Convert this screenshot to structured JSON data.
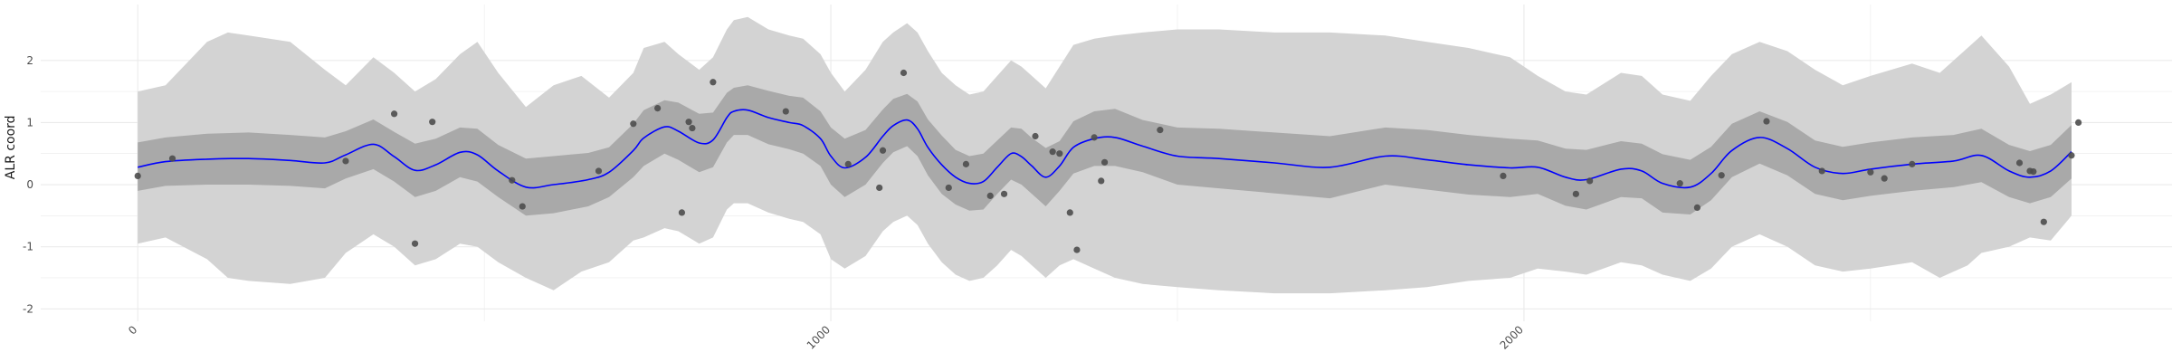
{
  "chart_data": {
    "type": "line",
    "title": "",
    "xlabel": "",
    "ylabel": "ALR coord",
    "xlim": [
      -140,
      2935
    ],
    "ylim": [
      -2.2,
      2.9
    ],
    "x_ticks": [
      0,
      1000,
      2000
    ],
    "x_tick_labels": [
      "0",
      "1000",
      "2000"
    ],
    "y_ticks": [
      -2,
      -1,
      0,
      1,
      2
    ],
    "y_tick_labels": [
      "-2",
      "-1",
      "0",
      "1",
      "2"
    ],
    "grid": true,
    "legend": "none",
    "colors": {
      "outer_band": "#d3d3d3",
      "inner_band": "#a9a9a9",
      "mean_line": "#0000ff",
      "points": "#4d4d4d",
      "grid": "#ebebeb"
    },
    "mean": [
      [
        0,
        0.28
      ],
      [
        40,
        0.37
      ],
      [
        100,
        0.41
      ],
      [
        160,
        0.42
      ],
      [
        220,
        0.39
      ],
      [
        270,
        0.35
      ],
      [
        300,
        0.48
      ],
      [
        340,
        0.65
      ],
      [
        370,
        0.45
      ],
      [
        400,
        0.23
      ],
      [
        430,
        0.32
      ],
      [
        465,
        0.52
      ],
      [
        490,
        0.48
      ],
      [
        520,
        0.22
      ],
      [
        560,
        -0.04
      ],
      [
        600,
        0.0
      ],
      [
        650,
        0.08
      ],
      [
        680,
        0.2
      ],
      [
        715,
        0.55
      ],
      [
        730,
        0.75
      ],
      [
        760,
        0.93
      ],
      [
        780,
        0.86
      ],
      [
        810,
        0.67
      ],
      [
        830,
        0.72
      ],
      [
        850,
        1.08
      ],
      [
        860,
        1.18
      ],
      [
        880,
        1.2
      ],
      [
        910,
        1.08
      ],
      [
        940,
        1.0
      ],
      [
        960,
        0.95
      ],
      [
        985,
        0.74
      ],
      [
        1000,
        0.46
      ],
      [
        1020,
        0.27
      ],
      [
        1050,
        0.44
      ],
      [
        1075,
        0.78
      ],
      [
        1090,
        0.95
      ],
      [
        1110,
        1.04
      ],
      [
        1125,
        0.9
      ],
      [
        1140,
        0.6
      ],
      [
        1160,
        0.32
      ],
      [
        1180,
        0.12
      ],
      [
        1200,
        0.02
      ],
      [
        1220,
        0.05
      ],
      [
        1240,
        0.28
      ],
      [
        1260,
        0.5
      ],
      [
        1275,
        0.45
      ],
      [
        1290,
        0.3
      ],
      [
        1310,
        0.12
      ],
      [
        1330,
        0.3
      ],
      [
        1350,
        0.6
      ],
      [
        1380,
        0.74
      ],
      [
        1410,
        0.76
      ],
      [
        1450,
        0.62
      ],
      [
        1500,
        0.46
      ],
      [
        1560,
        0.42
      ],
      [
        1640,
        0.35
      ],
      [
        1720,
        0.28
      ],
      [
        1800,
        0.46
      ],
      [
        1860,
        0.4
      ],
      [
        1920,
        0.32
      ],
      [
        1980,
        0.27
      ],
      [
        2020,
        0.28
      ],
      [
        2060,
        0.12
      ],
      [
        2090,
        0.08
      ],
      [
        2140,
        0.25
      ],
      [
        2170,
        0.22
      ],
      [
        2200,
        0.02
      ],
      [
        2240,
        -0.04
      ],
      [
        2270,
        0.18
      ],
      [
        2300,
        0.55
      ],
      [
        2340,
        0.76
      ],
      [
        2380,
        0.58
      ],
      [
        2420,
        0.28
      ],
      [
        2460,
        0.18
      ],
      [
        2500,
        0.25
      ],
      [
        2560,
        0.33
      ],
      [
        2620,
        0.38
      ],
      [
        2660,
        0.47
      ],
      [
        2700,
        0.22
      ],
      [
        2730,
        0.12
      ],
      [
        2760,
        0.22
      ],
      [
        2790,
        0.53
      ]
    ],
    "inner_band": [
      [
        0,
        -0.1,
        0.68
      ],
      [
        40,
        -0.02,
        0.76
      ],
      [
        100,
        0.0,
        0.82
      ],
      [
        160,
        0.0,
        0.84
      ],
      [
        220,
        -0.02,
        0.8
      ],
      [
        270,
        -0.06,
        0.76
      ],
      [
        300,
        0.1,
        0.86
      ],
      [
        340,
        0.25,
        1.05
      ],
      [
        370,
        0.05,
        0.85
      ],
      [
        400,
        -0.2,
        0.66
      ],
      [
        430,
        -0.1,
        0.74
      ],
      [
        465,
        0.12,
        0.92
      ],
      [
        490,
        0.05,
        0.9
      ],
      [
        520,
        -0.2,
        0.64
      ],
      [
        560,
        -0.5,
        0.42
      ],
      [
        600,
        -0.46,
        0.46
      ],
      [
        650,
        -0.35,
        0.51
      ],
      [
        680,
        -0.2,
        0.6
      ],
      [
        715,
        0.12,
        0.98
      ],
      [
        730,
        0.3,
        1.2
      ],
      [
        760,
        0.5,
        1.36
      ],
      [
        780,
        0.4,
        1.32
      ],
      [
        810,
        0.2,
        1.14
      ],
      [
        830,
        0.28,
        1.16
      ],
      [
        850,
        0.68,
        1.48
      ],
      [
        860,
        0.8,
        1.56
      ],
      [
        880,
        0.8,
        1.6
      ],
      [
        910,
        0.65,
        1.51
      ],
      [
        940,
        0.57,
        1.43
      ],
      [
        960,
        0.5,
        1.4
      ],
      [
        985,
        0.3,
        1.18
      ],
      [
        1000,
        0.0,
        0.92
      ],
      [
        1020,
        -0.2,
        0.74
      ],
      [
        1050,
        0.0,
        0.88
      ],
      [
        1075,
        0.35,
        1.21
      ],
      [
        1090,
        0.52,
        1.38
      ],
      [
        1110,
        0.62,
        1.46
      ],
      [
        1125,
        0.46,
        1.34
      ],
      [
        1140,
        0.15,
        1.05
      ],
      [
        1160,
        -0.15,
        0.79
      ],
      [
        1180,
        -0.32,
        0.56
      ],
      [
        1200,
        -0.42,
        0.46
      ],
      [
        1220,
        -0.4,
        0.5
      ],
      [
        1240,
        -0.15,
        0.71
      ],
      [
        1260,
        0.08,
        0.92
      ],
      [
        1275,
        0.0,
        0.9
      ],
      [
        1290,
        -0.15,
        0.75
      ],
      [
        1310,
        -0.35,
        0.59
      ],
      [
        1330,
        -0.1,
        0.7
      ],
      [
        1350,
        0.18,
        1.02
      ],
      [
        1380,
        0.3,
        1.18
      ],
      [
        1410,
        0.3,
        1.22
      ],
      [
        1450,
        0.2,
        1.04
      ],
      [
        1500,
        0.0,
        0.92
      ],
      [
        1560,
        -0.06,
        0.9
      ],
      [
        1640,
        -0.14,
        0.84
      ],
      [
        1720,
        -0.22,
        0.78
      ],
      [
        1800,
        0.0,
        0.92
      ],
      [
        1860,
        -0.08,
        0.88
      ],
      [
        1920,
        -0.16,
        0.8
      ],
      [
        1980,
        -0.2,
        0.74
      ],
      [
        2020,
        -0.15,
        0.71
      ],
      [
        2060,
        -0.34,
        0.58
      ],
      [
        2090,
        -0.4,
        0.56
      ],
      [
        2140,
        -0.2,
        0.7
      ],
      [
        2170,
        -0.22,
        0.66
      ],
      [
        2200,
        -0.45,
        0.49
      ],
      [
        2240,
        -0.48,
        0.4
      ],
      [
        2270,
        -0.25,
        0.61
      ],
      [
        2300,
        0.12,
        0.98
      ],
      [
        2340,
        0.34,
        1.18
      ],
      [
        2380,
        0.15,
        1.01
      ],
      [
        2420,
        -0.15,
        0.71
      ],
      [
        2460,
        -0.25,
        0.61
      ],
      [
        2500,
        -0.18,
        0.68
      ],
      [
        2560,
        -0.1,
        0.76
      ],
      [
        2620,
        -0.04,
        0.8
      ],
      [
        2660,
        0.04,
        0.9
      ],
      [
        2700,
        -0.2,
        0.64
      ],
      [
        2730,
        -0.3,
        0.54
      ],
      [
        2760,
        -0.2,
        0.64
      ],
      [
        2790,
        0.1,
        0.96
      ]
    ],
    "outer_band": [
      [
        0,
        -0.95,
        1.5
      ],
      [
        40,
        -0.85,
        1.6
      ],
      [
        100,
        -1.2,
        2.3
      ],
      [
        130,
        -1.5,
        2.45
      ],
      [
        160,
        -1.55,
        2.4
      ],
      [
        220,
        -1.6,
        2.3
      ],
      [
        270,
        -1.5,
        1.85
      ],
      [
        300,
        -1.1,
        1.6
      ],
      [
        340,
        -0.8,
        2.05
      ],
      [
        370,
        -1.0,
        1.8
      ],
      [
        400,
        -1.3,
        1.5
      ],
      [
        430,
        -1.2,
        1.7
      ],
      [
        465,
        -0.95,
        2.1
      ],
      [
        490,
        -1.0,
        2.3
      ],
      [
        520,
        -1.25,
        1.8
      ],
      [
        560,
        -1.5,
        1.25
      ],
      [
        600,
        -1.7,
        1.6
      ],
      [
        640,
        -1.4,
        1.75
      ],
      [
        680,
        -1.25,
        1.4
      ],
      [
        715,
        -0.9,
        1.8
      ],
      [
        730,
        -0.85,
        2.2
      ],
      [
        760,
        -0.7,
        2.3
      ],
      [
        780,
        -0.75,
        2.1
      ],
      [
        810,
        -0.95,
        1.85
      ],
      [
        830,
        -0.85,
        2.05
      ],
      [
        850,
        -0.4,
        2.5
      ],
      [
        860,
        -0.3,
        2.65
      ],
      [
        880,
        -0.3,
        2.7
      ],
      [
        910,
        -0.45,
        2.5
      ],
      [
        940,
        -0.55,
        2.4
      ],
      [
        960,
        -0.6,
        2.35
      ],
      [
        985,
        -0.8,
        2.1
      ],
      [
        1000,
        -1.2,
        1.8
      ],
      [
        1020,
        -1.35,
        1.5
      ],
      [
        1050,
        -1.15,
        1.85
      ],
      [
        1075,
        -0.75,
        2.3
      ],
      [
        1090,
        -0.6,
        2.45
      ],
      [
        1110,
        -0.5,
        2.6
      ],
      [
        1125,
        -0.65,
        2.45
      ],
      [
        1140,
        -0.95,
        2.15
      ],
      [
        1160,
        -1.25,
        1.8
      ],
      [
        1180,
        -1.45,
        1.6
      ],
      [
        1200,
        -1.55,
        1.45
      ],
      [
        1220,
        -1.5,
        1.5
      ],
      [
        1240,
        -1.3,
        1.75
      ],
      [
        1260,
        -1.05,
        2.0
      ],
      [
        1275,
        -1.15,
        1.9
      ],
      [
        1290,
        -1.3,
        1.75
      ],
      [
        1310,
        -1.5,
        1.55
      ],
      [
        1330,
        -1.3,
        1.9
      ],
      [
        1350,
        -1.2,
        2.25
      ],
      [
        1380,
        -1.35,
        2.35
      ],
      [
        1410,
        -1.5,
        2.4
      ],
      [
        1450,
        -1.6,
        2.45
      ],
      [
        1500,
        -1.65,
        2.5
      ],
      [
        1560,
        -1.7,
        2.5
      ],
      [
        1640,
        -1.75,
        2.45
      ],
      [
        1720,
        -1.75,
        2.45
      ],
      [
        1800,
        -1.7,
        2.4
      ],
      [
        1860,
        -1.65,
        2.3
      ],
      [
        1920,
        -1.55,
        2.2
      ],
      [
        1980,
        -1.5,
        2.05
      ],
      [
        2020,
        -1.35,
        1.75
      ],
      [
        2060,
        -1.4,
        1.5
      ],
      [
        2090,
        -1.45,
        1.45
      ],
      [
        2140,
        -1.25,
        1.8
      ],
      [
        2170,
        -1.3,
        1.75
      ],
      [
        2200,
        -1.45,
        1.45
      ],
      [
        2240,
        -1.55,
        1.35
      ],
      [
        2270,
        -1.35,
        1.75
      ],
      [
        2300,
        -1.0,
        2.1
      ],
      [
        2340,
        -0.8,
        2.3
      ],
      [
        2380,
        -1.0,
        2.15
      ],
      [
        2420,
        -1.3,
        1.85
      ],
      [
        2460,
        -1.4,
        1.6
      ],
      [
        2500,
        -1.35,
        1.75
      ],
      [
        2560,
        -1.25,
        1.95
      ],
      [
        2600,
        -1.5,
        1.8
      ],
      [
        2640,
        -1.3,
        2.2
      ],
      [
        2660,
        -1.1,
        2.4
      ],
      [
        2700,
        -1.0,
        1.9
      ],
      [
        2730,
        -0.85,
        1.3
      ],
      [
        2760,
        -0.9,
        1.45
      ],
      [
        2790,
        -0.5,
        1.65
      ]
    ],
    "points": [
      [
        0,
        0.14
      ],
      [
        50,
        0.42
      ],
      [
        300,
        0.38
      ],
      [
        370,
        1.14
      ],
      [
        400,
        -0.95
      ],
      [
        425,
        1.01
      ],
      [
        540,
        0.07
      ],
      [
        555,
        -0.35
      ],
      [
        665,
        0.22
      ],
      [
        715,
        0.98
      ],
      [
        750,
        1.23
      ],
      [
        785,
        -0.45
      ],
      [
        795,
        1.01
      ],
      [
        800,
        0.91
      ],
      [
        830,
        1.65
      ],
      [
        935,
        1.18
      ],
      [
        1025,
        0.33
      ],
      [
        1070,
        -0.05
      ],
      [
        1075,
        0.55
      ],
      [
        1105,
        1.8
      ],
      [
        1170,
        -0.05
      ],
      [
        1195,
        0.33
      ],
      [
        1230,
        -0.18
      ],
      [
        1250,
        -0.15
      ],
      [
        1295,
        0.78
      ],
      [
        1320,
        0.53
      ],
      [
        1330,
        0.5
      ],
      [
        1345,
        -0.45
      ],
      [
        1355,
        -1.05
      ],
      [
        1380,
        0.76
      ],
      [
        1390,
        0.06
      ],
      [
        1395,
        0.36
      ],
      [
        1475,
        0.88
      ],
      [
        1970,
        0.14
      ],
      [
        2075,
        -0.15
      ],
      [
        2095,
        0.06
      ],
      [
        2225,
        0.02
      ],
      [
        2250,
        -0.37
      ],
      [
        2285,
        0.15
      ],
      [
        2350,
        1.02
      ],
      [
        2430,
        0.22
      ],
      [
        2500,
        0.2
      ],
      [
        2520,
        0.1
      ],
      [
        2560,
        0.33
      ],
      [
        2715,
        0.35
      ],
      [
        2730,
        0.22
      ],
      [
        2735,
        0.21
      ],
      [
        2750,
        -0.6
      ],
      [
        2790,
        0.47
      ],
      [
        2800,
        1.0
      ]
    ]
  }
}
